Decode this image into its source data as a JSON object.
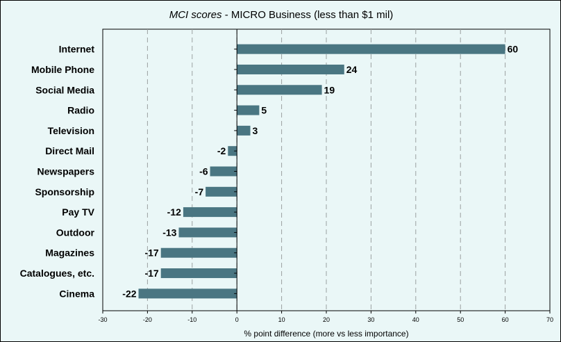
{
  "chart_data": {
    "type": "bar",
    "orientation": "horizontal",
    "title_italic": "MCI scores",
    "title_rest": " - MICRO Business (less than $1 mil)",
    "xlabel": "% point difference (more vs less importance)",
    "ylabel": "",
    "xlim": [
      -30,
      70
    ],
    "xticks": [
      -30,
      -20,
      -10,
      0,
      10,
      20,
      30,
      40,
      50,
      60,
      70
    ],
    "grid": "vertical dashed",
    "bar_color": "#4a7682",
    "categories": [
      "Internet",
      "Mobile Phone",
      "Social Media",
      "Radio",
      "Television",
      "Direct Mail",
      "Newspapers",
      "Sponsorship",
      "Pay TV",
      "Outdoor",
      "Magazines",
      "Catalogues, etc.",
      "Cinema"
    ],
    "values": [
      60,
      24,
      19,
      5,
      3,
      -2,
      -6,
      -7,
      -12,
      -13,
      -17,
      -17,
      -22
    ]
  }
}
